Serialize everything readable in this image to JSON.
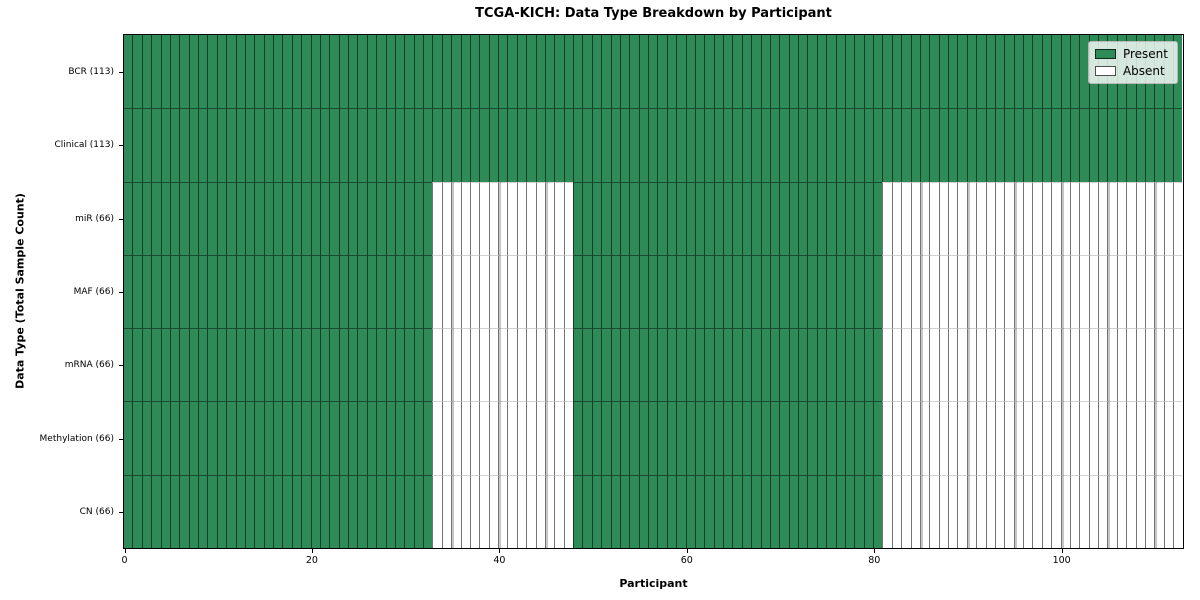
{
  "chart_data": {
    "type": "heatmap",
    "title": "TCGA-KICH: Data Type Breakdown by Participant",
    "xlabel": "Participant",
    "ylabel": "Data Type (Total Sample Count)",
    "x_ticks": [
      0,
      20,
      40,
      60,
      80,
      100
    ],
    "x_range": [
      0,
      113
    ],
    "n_participants": 113,
    "grid_minor_every": 5,
    "grid": "minor vertical gridlines every 5 participants, visible in absent regions",
    "colors": {
      "present": "#2e8b57",
      "absent": "#ffffff"
    },
    "legend": {
      "position": "upper right",
      "entries": [
        {
          "label": "Present",
          "color": "#2e8b57"
        },
        {
          "label": "Absent",
          "color": "#ffffff"
        }
      ]
    },
    "rows": [
      {
        "label": "BCR (113)",
        "total": 113,
        "present_runs": [
          [
            0,
            113
          ]
        ]
      },
      {
        "label": "Clinical (113)",
        "total": 113,
        "present_runs": [
          [
            0,
            113
          ]
        ]
      },
      {
        "label": "miR (66)",
        "total": 66,
        "present_runs": [
          [
            0,
            33
          ],
          [
            48,
            81
          ]
        ]
      },
      {
        "label": "MAF (66)",
        "total": 66,
        "present_runs": [
          [
            0,
            33
          ],
          [
            48,
            81
          ]
        ]
      },
      {
        "label": "mRNA (66)",
        "total": 66,
        "present_runs": [
          [
            0,
            33
          ],
          [
            48,
            81
          ]
        ]
      },
      {
        "label": "Methylation (66)",
        "total": 66,
        "present_runs": [
          [
            0,
            33
          ],
          [
            48,
            81
          ]
        ]
      },
      {
        "label": "CN (66)",
        "total": 66,
        "present_runs": [
          [
            0,
            33
          ],
          [
            48,
            81
          ]
        ]
      }
    ]
  }
}
